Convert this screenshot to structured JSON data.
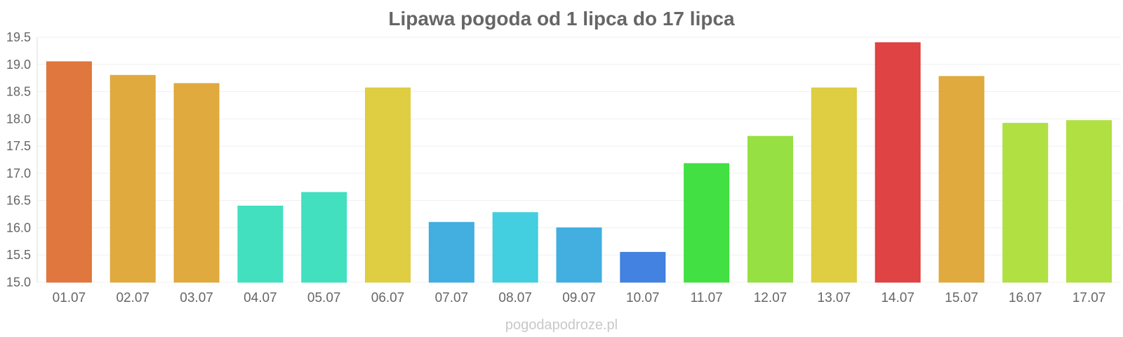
{
  "chart_data": {
    "type": "bar",
    "title": "Lipawa pogoda od 1 lipca do 17 lipca",
    "xlabel": "",
    "ylabel": "",
    "categories": [
      "01.07",
      "02.07",
      "03.07",
      "04.07",
      "05.07",
      "06.07",
      "07.07",
      "08.07",
      "09.07",
      "10.07",
      "11.07",
      "12.07",
      "13.07",
      "14.07",
      "15.07",
      "16.07",
      "17.07"
    ],
    "values": [
      19.05,
      18.8,
      18.65,
      16.4,
      16.65,
      18.57,
      16.1,
      16.28,
      16.0,
      15.55,
      17.18,
      17.68,
      18.57,
      19.4,
      18.78,
      17.92,
      17.97
    ],
    "colors": [
      "#dd6b2f",
      "#dda32f",
      "#dda32f",
      "#33ddbb",
      "#33ddbb",
      "#dcc932",
      "#33a7dd",
      "#33cbdd",
      "#33a7dd",
      "#3377dd",
      "#33dd33",
      "#8edd33",
      "#dcc932",
      "#dd3333",
      "#dda32f",
      "#aadd33",
      "#aadd33"
    ],
    "yticks": [
      "15.0",
      "15.5",
      "16.0",
      "16.5",
      "17.0",
      "17.5",
      "18.0",
      "18.5",
      "19.0",
      "19.5"
    ],
    "ylim": [
      15.0,
      19.5
    ],
    "grid": true,
    "legend": "none"
  },
  "watermark": "pogodapodroze.pl"
}
